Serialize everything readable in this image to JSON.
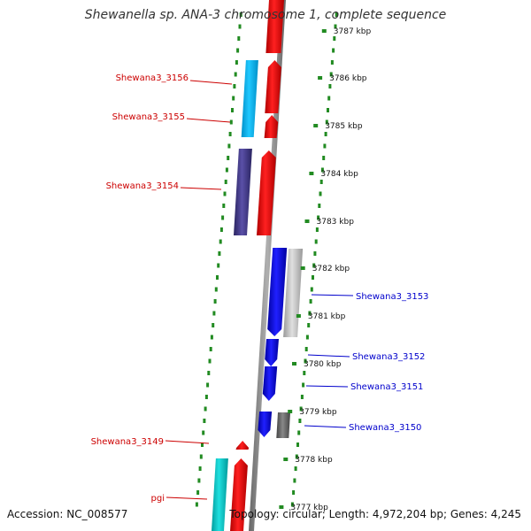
{
  "title": "Shewanella sp. ANA-3 chromosome 1, complete sequence",
  "footer": {
    "accession": "Accession: NC_008577",
    "summary": "Topology: circular; Length: 4,972,204 bp; Genes: 4,245"
  },
  "scale": {
    "ticks": [
      {
        "label": "3787 kbp",
        "kbp": 3787
      },
      {
        "label": "3786 kbp",
        "kbp": 3786
      },
      {
        "label": "3785 kbp",
        "kbp": 3785
      },
      {
        "label": "3784 kbp",
        "kbp": 3784
      },
      {
        "label": "3783 kbp",
        "kbp": 3783
      },
      {
        "label": "3782 kbp",
        "kbp": 3782
      },
      {
        "label": "3781 kbp",
        "kbp": 3781
      },
      {
        "label": "3780 kbp",
        "kbp": 3780
      },
      {
        "label": "3779 kbp",
        "kbp": 3779
      },
      {
        "label": "3778 kbp",
        "kbp": 3778
      },
      {
        "label": "3777 kbp",
        "kbp": 3777
      }
    ]
  },
  "genes": [
    {
      "label": "Shewana3_3156",
      "strand": "reverse",
      "side": "left",
      "color": "#ff0000"
    },
    {
      "label": "Shewana3_3155",
      "strand": "reverse",
      "side": "left",
      "color": "#ff0000"
    },
    {
      "label": "Shewana3_3154",
      "strand": "reverse",
      "side": "left",
      "color": "#ff0000"
    },
    {
      "label": "Shewana3_3153",
      "strand": "forward",
      "side": "right",
      "color": "#0000ff"
    },
    {
      "label": "Shewana3_3152",
      "strand": "forward",
      "side": "right",
      "color": "#0000ff"
    },
    {
      "label": "Shewana3_3151",
      "strand": "forward",
      "side": "right",
      "color": "#0000ff"
    },
    {
      "label": "Shewana3_3150",
      "strand": "forward",
      "side": "right",
      "color": "#0000ff"
    },
    {
      "label": "Shewana3_3149",
      "strand": "reverse",
      "side": "left",
      "color": "#ff0000"
    },
    {
      "label": "pgi",
      "strand": "reverse",
      "side": "left",
      "color": "#ff0000"
    }
  ],
  "colors": {
    "reverse_cds": "#ff0000",
    "forward_cds": "#0000ff",
    "backbone": "#888888",
    "guide_dots": "#228b22",
    "cog_cyan": "#00bfff",
    "cog_purple": "#483d8b",
    "cog_silver": "#c0c0c0",
    "cog_gray": "#696969",
    "cog_teal": "#00c8c8"
  }
}
